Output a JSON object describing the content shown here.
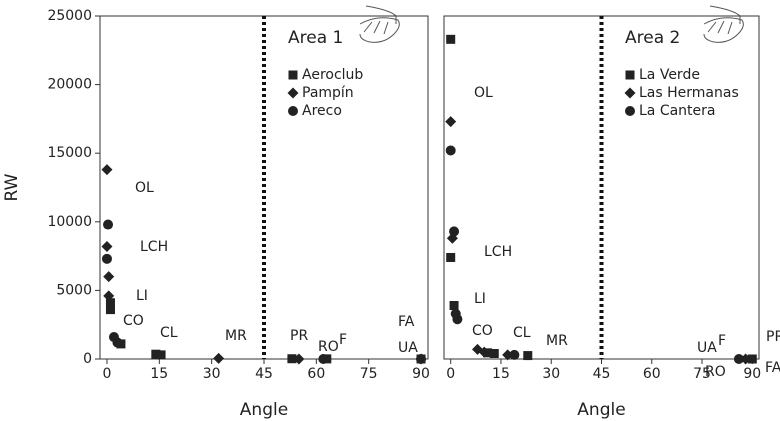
{
  "chart_data": [
    {
      "type": "scatter",
      "title": "Area 1",
      "x_label": "Angle",
      "y_label": "RW",
      "xlim": [
        -2,
        92
      ],
      "ylim": [
        0,
        25000
      ],
      "xticks": [
        0,
        15,
        30,
        45,
        60,
        75,
        90
      ],
      "yticks": [
        0,
        5000,
        10000,
        15000,
        20000,
        25000
      ],
      "reference_line": 45,
      "series": [
        {
          "name": "Aeroclub",
          "marker": "square",
          "color": "#222222",
          "x": [
            1,
            1,
            4,
            14,
            15.5,
            53,
            63,
            90
          ],
          "values": [
            4100,
            3600,
            1100,
            350,
            300,
            20,
            10,
            0
          ]
        },
        {
          "name": "Pampín",
          "marker": "diamond",
          "color": "#222222",
          "x": [
            0,
            0,
            0.5,
            0.5,
            32,
            55,
            90
          ],
          "values": [
            13800,
            8200,
            6000,
            4600,
            50,
            0,
            0
          ]
        },
        {
          "name": "Areco",
          "marker": "circle",
          "color": "#222222",
          "x": [
            0.3,
            0,
            2,
            3,
            62,
            90
          ],
          "values": [
            9800,
            7300,
            1600,
            1200,
            0,
            0
          ]
        }
      ],
      "annotations": [
        "OL",
        "LCH",
        "LI",
        "CO",
        "CL",
        "MR",
        "PR",
        "RO",
        "F",
        "FA",
        "UA"
      ]
    },
    {
      "type": "scatter",
      "title": "Area 2",
      "x_label": "Angle",
      "xlim": [
        -2,
        92
      ],
      "ylim": [
        0,
        25000
      ],
      "xticks": [
        0,
        15,
        30,
        45,
        60,
        75,
        90
      ],
      "reference_line": 45,
      "series": [
        {
          "name": "La Verde",
          "marker": "square",
          "color": "#222222",
          "x": [
            0,
            0,
            1,
            11,
            13,
            23,
            90
          ],
          "values": [
            23300,
            7400,
            3900,
            450,
            400,
            250,
            0
          ]
        },
        {
          "name": "Las Hermanas",
          "marker": "diamond",
          "color": "#222222",
          "x": [
            0,
            0.5,
            8,
            10,
            17,
            88
          ],
          "values": [
            17300,
            8800,
            700,
            500,
            300,
            0
          ]
        },
        {
          "name": "La Cantera",
          "marker": "circle",
          "color": "#222222",
          "x": [
            0,
            1,
            1.5,
            2,
            19,
            86
          ],
          "values": [
            15200,
            9300,
            3300,
            2900,
            300,
            0
          ]
        }
      ],
      "annotations": [
        "OL",
        "LCH",
        "LI",
        "CO",
        "CL",
        "MR",
        "UA",
        "RO",
        "F",
        "PR",
        "FA"
      ]
    }
  ]
}
